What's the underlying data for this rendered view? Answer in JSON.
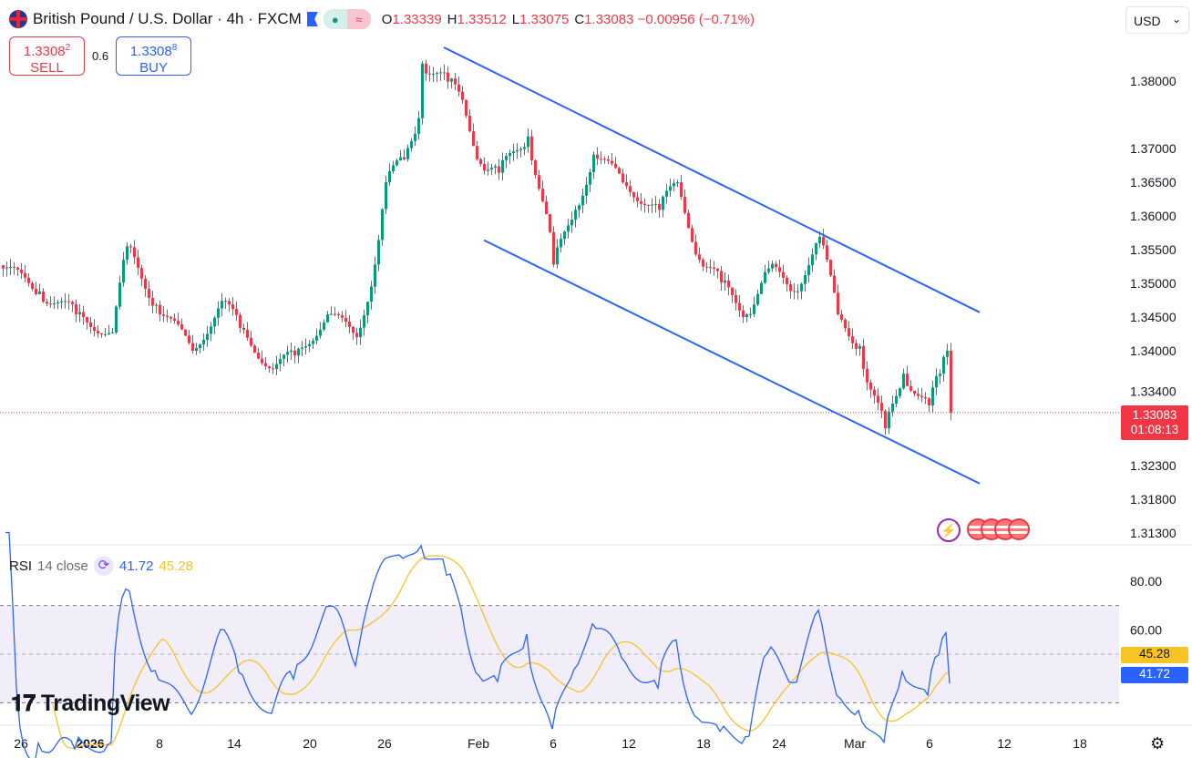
{
  "header": {
    "symbol": "British Pound / U.S. Dollar · 4h · FXCM",
    "o_label": "O",
    "o": "1.33339",
    "h_label": "H",
    "h": "1.33512",
    "l_label": "L",
    "l": "1.33075",
    "c_label": "C",
    "c": "1.33083",
    "change": "−0.00956 (−0.71%)"
  },
  "trade": {
    "sell_price": "1.3308",
    "sell_sup": "2",
    "sell_label": "SELL",
    "spread": "0.6",
    "buy_price": "1.3308",
    "buy_sup": "8",
    "buy_label": "BUY"
  },
  "currency": "USD",
  "rsi": {
    "name": "RSI",
    "params": "14 close",
    "value": "41.72",
    "ma_value": "45.28"
  },
  "last_price": {
    "value": "1.33083",
    "countdown": "01:08:13"
  },
  "brand": "TradingView",
  "colors": {
    "up": "#089981",
    "down": "#f23645",
    "channel": "#2962ff",
    "rsi": "#2962ff",
    "rsi_ma": "#f7c325"
  },
  "chart_data": {
    "type": "candlestick",
    "price_ticks": [
      "1.38000",
      "1.37000",
      "1.36500",
      "1.36000",
      "1.35500",
      "1.35000",
      "1.34500",
      "1.34000",
      "1.33400",
      "1.32300",
      "1.31800",
      "1.31300"
    ],
    "rsi_ticks": [
      "80.00",
      "60.00"
    ],
    "rsi_levels": [
      70,
      50,
      30
    ],
    "time_ticks": [
      [
        5.25,
        "26"
      ],
      [
        24.25,
        "2026"
      ],
      [
        43.25,
        "8"
      ],
      [
        63.75,
        "14"
      ],
      [
        84.5,
        "20"
      ],
      [
        105,
        "26"
      ],
      [
        130.75,
        "Feb"
      ],
      [
        151.25,
        "6"
      ],
      [
        172,
        "12"
      ],
      [
        192.5,
        "18"
      ],
      [
        213.25,
        "24"
      ],
      [
        234,
        "Mar"
      ],
      [
        254.5,
        "6"
      ],
      [
        275,
        "12"
      ],
      [
        295.75,
        "18"
      ]
    ],
    "close_path": [
      [
        0,
        1.3522
      ],
      [
        10,
        1.3488
      ],
      [
        20,
        1.3454
      ],
      [
        30,
        1.3427
      ],
      [
        34,
        1.3555
      ],
      [
        42,
        1.3468
      ],
      [
        52,
        1.34
      ],
      [
        60,
        1.3474
      ],
      [
        65,
        1.3434
      ],
      [
        74,
        1.3373
      ],
      [
        80,
        1.3393
      ],
      [
        89,
        1.3454
      ],
      [
        97,
        1.342
      ],
      [
        102,
        1.3528
      ],
      [
        105,
        1.365
      ],
      [
        110,
        1.3684
      ],
      [
        114,
        1.3745
      ],
      [
        115,
        1.3826
      ],
      [
        122,
        1.3799
      ],
      [
        126,
        1.3772
      ],
      [
        131,
        1.3677
      ],
      [
        136,
        1.3664
      ],
      [
        144,
        1.3718
      ],
      [
        150,
        1.3576
      ],
      [
        151,
        1.3528
      ],
      [
        157,
        1.3609
      ],
      [
        162,
        1.3691
      ],
      [
        170,
        1.365
      ],
      [
        180,
        1.3609
      ],
      [
        185,
        1.365
      ],
      [
        191,
        1.3535
      ],
      [
        197,
        1.3501
      ],
      [
        204,
        1.3454
      ],
      [
        210,
        1.3522
      ],
      [
        217,
        1.3488
      ],
      [
        224,
        1.3569
      ],
      [
        229,
        1.3454
      ],
      [
        235,
        1.3407
      ],
      [
        237,
        1.3353
      ],
      [
        242,
        1.3285
      ],
      [
        247,
        1.3366
      ],
      [
        254,
        1.3319
      ],
      [
        257,
        1.3366
      ],
      [
        259,
        1.34
      ],
      [
        260,
        1.33083
      ]
    ],
    "channel": {
      "upper": [
        [
          121.25,
          1.385
        ],
        [
          268.25,
          1.3457
        ]
      ],
      "lower": [
        [
          132.25,
          1.3564
        ],
        [
          268.25,
          1.3203
        ]
      ]
    }
  }
}
